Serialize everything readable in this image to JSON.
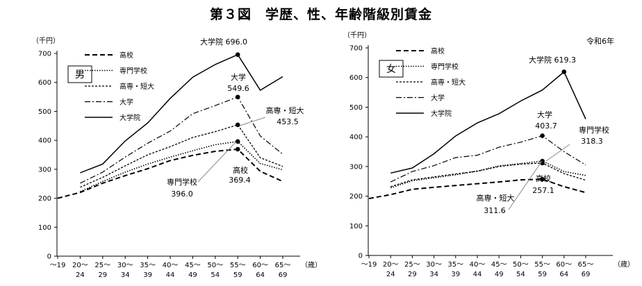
{
  "figure": {
    "title": "第３図　学歴、性、年齢階級別賃金",
    "year_note": "令和6年",
    "unit_label": "（千円）",
    "age_unit": "（歳）"
  },
  "chart_data": [
    {
      "type": "line",
      "panel_label": "男",
      "ylabel": "（千円）",
      "xlabel": "（歳）",
      "ylim": [
        0,
        700
      ],
      "yticks": [
        0,
        100,
        200,
        300,
        400,
        500,
        600,
        700
      ],
      "categories": [
        {
          "top": "～19",
          "bottom": ""
        },
        {
          "top": "20～",
          "bottom": "24"
        },
        {
          "top": "25～",
          "bottom": "29"
        },
        {
          "top": "30～",
          "bottom": "34"
        },
        {
          "top": "35～",
          "bottom": "39"
        },
        {
          "top": "40～",
          "bottom": "44"
        },
        {
          "top": "45～",
          "bottom": "49"
        },
        {
          "top": "50～",
          "bottom": "54"
        },
        {
          "top": "55～",
          "bottom": "59"
        },
        {
          "top": "60～",
          "bottom": "64"
        },
        {
          "top": "65～",
          "bottom": "69"
        }
      ],
      "series": [
        {
          "name": "高校",
          "style": "dash",
          "values": [
            200,
            220,
            252,
            278,
            302,
            330,
            348,
            362,
            369.4,
            293,
            258
          ],
          "peak_index": 8,
          "peak_label": "高校\n369.4"
        },
        {
          "name": "専門学校",
          "style": "dot",
          "values": [
            null,
            223,
            258,
            290,
            318,
            342,
            364,
            385,
            396.0,
            320,
            298
          ],
          "peak_index": 8,
          "peak_label": "専門学校\n396.0"
        },
        {
          "name": "高専・短大",
          "style": "shortdash",
          "values": [
            null,
            238,
            272,
            312,
            350,
            378,
            410,
            430,
            453.5,
            340,
            310
          ],
          "peak_index": 8,
          "peak_label": "高専・短大\n453.5"
        },
        {
          "name": "大学",
          "style": "dashdot",
          "values": [
            null,
            252,
            290,
            342,
            390,
            432,
            492,
            520,
            549.6,
            415,
            352
          ],
          "peak_index": 8,
          "peak_label": "大学\n549.6"
        },
        {
          "name": "大学院",
          "style": "solid",
          "values": [
            null,
            288,
            318,
            398,
            460,
            545,
            618,
            662,
            696.0,
            573,
            620
          ],
          "peak_index": 8,
          "peak_label": "大学院 696.0"
        }
      ]
    },
    {
      "type": "line",
      "panel_label": "女",
      "ylabel": "（千円）",
      "xlabel": "（歳）",
      "ylim": [
        0,
        700
      ],
      "yticks": [
        0,
        100,
        200,
        300,
        400,
        500,
        600,
        700
      ],
      "categories": [
        {
          "top": "～19",
          "bottom": ""
        },
        {
          "top": "20～",
          "bottom": "24"
        },
        {
          "top": "25～",
          "bottom": "29"
        },
        {
          "top": "30～",
          "bottom": "34"
        },
        {
          "top": "35～",
          "bottom": "39"
        },
        {
          "top": "40～",
          "bottom": "44"
        },
        {
          "top": "45～",
          "bottom": "49"
        },
        {
          "top": "50～",
          "bottom": "54"
        },
        {
          "top": "55～",
          "bottom": "59"
        },
        {
          "top": "60～",
          "bottom": "64"
        },
        {
          "top": "65～",
          "bottom": "69"
        }
      ],
      "series": [
        {
          "name": "高校",
          "style": "dash",
          "values": [
            192,
            205,
            223,
            230,
            236,
            242,
            248,
            255,
            257.1,
            232,
            212
          ],
          "peak_index": 8,
          "peak_label": "高校\n257.1"
        },
        {
          "name": "専門学校",
          "style": "dot",
          "values": [
            null,
            228,
            252,
            262,
            272,
            285,
            302,
            310,
            318.3,
            283,
            270
          ],
          "peak_index": 8,
          "peak_label": "専門学校\n318.3"
        },
        {
          "name": "高専・短大",
          "style": "shortdash",
          "values": [
            null,
            232,
            255,
            265,
            275,
            284,
            300,
            308,
            311.6,
            276,
            254
          ],
          "peak_index": 8,
          "peak_label": "高専・短大\n311.6"
        },
        {
          "name": "大学",
          "style": "dashdot",
          "values": [
            null,
            248,
            283,
            303,
            330,
            338,
            365,
            382,
            403.7,
            350,
            305
          ],
          "peak_index": 8,
          "peak_label": "大学\n403.7"
        },
        {
          "name": "大学院",
          "style": "solid",
          "values": [
            null,
            278,
            295,
            343,
            403,
            447,
            478,
            521,
            558,
            619.3,
            460
          ],
          "peak_index": 9,
          "peak_label": "大学院 619.3"
        }
      ]
    }
  ]
}
